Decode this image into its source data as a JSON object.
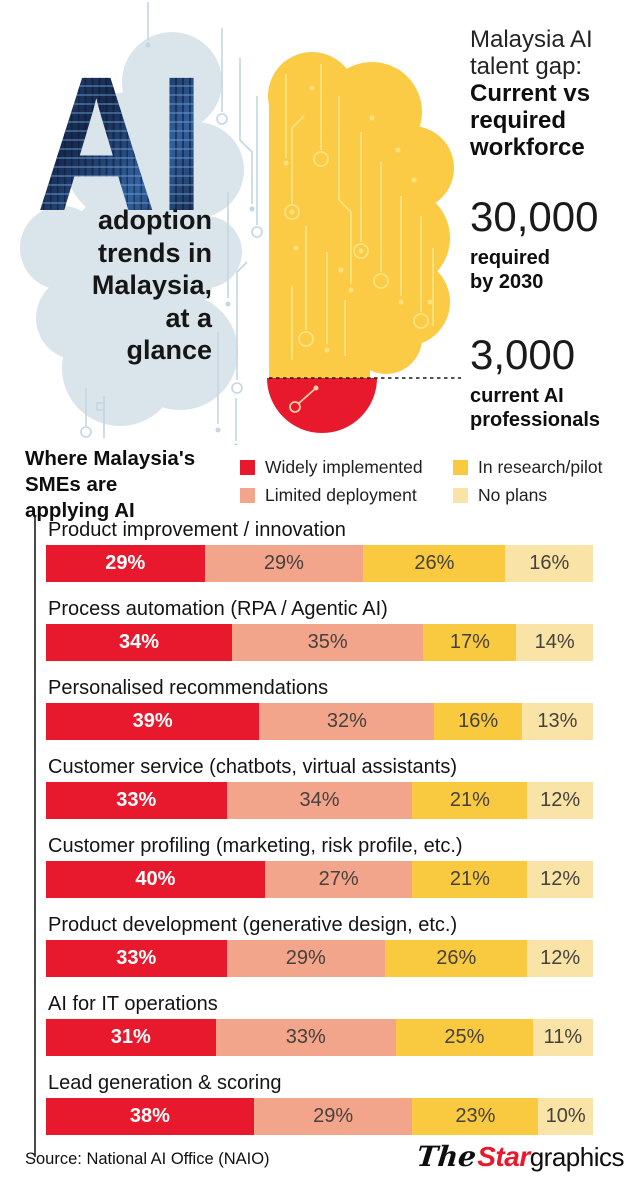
{
  "header": {
    "ai_word": "AI",
    "tagline_lines": [
      "adoption",
      "trends in",
      "Malaysia,",
      "at a",
      "glance"
    ],
    "talent_gap": {
      "title_light_lines": [
        "Malaysia AI",
        "talent gap:"
      ],
      "title_bold_lines": [
        "Current vs",
        "required",
        "workforce"
      ],
      "required": {
        "value": "30,000",
        "label_lines": [
          "required",
          "by 2030"
        ]
      },
      "current": {
        "value": "3,000",
        "label_lines": [
          "current AI",
          "professionals"
        ]
      }
    }
  },
  "chart": {
    "heading_lines": [
      "Where Malaysia's",
      "SMEs are",
      "applying AI"
    ]
  },
  "chart_data": {
    "type": "bar",
    "stacked": true,
    "orientation": "horizontal",
    "unit": "%",
    "xlim": [
      0,
      100
    ],
    "value_labels": "inside",
    "legend_position": "top",
    "categories": [
      "Product improvement / innovation",
      "Process automation (RPA / Agentic AI)",
      "Personalised recommendations",
      "Customer service (chatbots, virtual assistants)",
      "Customer profiling (marketing, risk profile, etc.)",
      "Product development (generative design, etc.)",
      "AI for IT operations",
      "Lead generation & scoring"
    ],
    "series": [
      {
        "name": "Widely implemented",
        "color": "#e9192d",
        "values": [
          29,
          34,
          39,
          33,
          40,
          33,
          31,
          38
        ]
      },
      {
        "name": "Limited deployment",
        "color": "#f3a58c",
        "values": [
          29,
          35,
          32,
          34,
          27,
          29,
          33,
          29
        ]
      },
      {
        "name": "In research/pilot",
        "color": "#f9c940",
        "values": [
          26,
          17,
          16,
          21,
          21,
          26,
          25,
          23
        ]
      },
      {
        "name": "No plans",
        "color": "#fae3a6",
        "values": [
          16,
          14,
          13,
          12,
          12,
          12,
          11,
          10
        ]
      }
    ]
  },
  "colors": {
    "star_red": "#e9192d",
    "brain_yellow": "#fbcb45",
    "brain_circuit": "#fce27f",
    "cloud_blue": "#d9e5eb",
    "trace_blue": "#c4d6e2"
  },
  "footer": {
    "source": "Source: National AI Office (NAIO)",
    "logo": {
      "the": "The",
      "star": "Star",
      "graphics": "graphics"
    }
  }
}
